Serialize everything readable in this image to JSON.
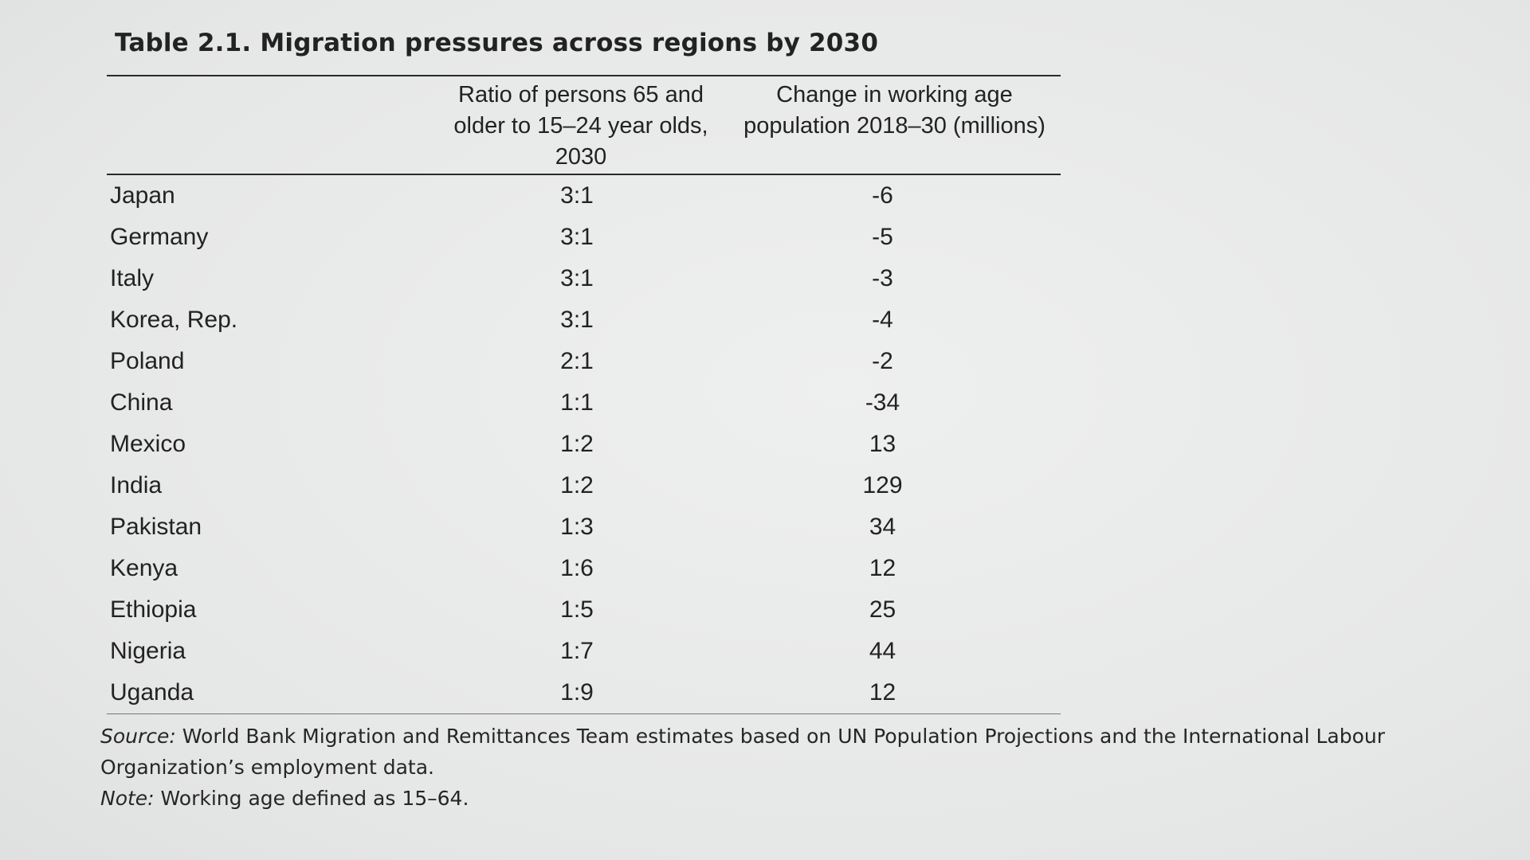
{
  "table": {
    "title": "Table 2.1. Migration pressures across regions by 2030",
    "headers": {
      "country": "",
      "ratio_line1": "Ratio of persons 65 and",
      "ratio_line2": "older to 15–24 year olds,",
      "ratio_line3": "2030",
      "change_line1": "Change in working age",
      "change_line2": "population 2018–30 (millions)"
    },
    "rows": [
      {
        "country": "Japan",
        "ratio": "3:1",
        "change": "-6"
      },
      {
        "country": "Germany",
        "ratio": "3:1",
        "change": "-5"
      },
      {
        "country": "Italy",
        "ratio": "3:1",
        "change": "-3"
      },
      {
        "country": "Korea, Rep.",
        "ratio": "3:1",
        "change": "-4"
      },
      {
        "country": "Poland",
        "ratio": "2:1",
        "change": "-2"
      },
      {
        "country": "China",
        "ratio": "1:1",
        "change": "-34"
      },
      {
        "country": "Mexico",
        "ratio": "1:2",
        "change": "13"
      },
      {
        "country": "India",
        "ratio": "1:2",
        "change": "129"
      },
      {
        "country": "Pakistan",
        "ratio": "1:3",
        "change": "34"
      },
      {
        "country": "Kenya",
        "ratio": "1:6",
        "change": "12"
      },
      {
        "country": "Ethiopia",
        "ratio": "1:5",
        "change": "25"
      },
      {
        "country": "Nigeria",
        "ratio": "1:7",
        "change": "44"
      },
      {
        "country": "Uganda",
        "ratio": "1:9",
        "change": "12"
      }
    ]
  },
  "notes": {
    "source_label": "Source:",
    "source_text": " World Bank Migration and Remittances Team estimates based on UN Population Projections and the International Labour Organization’s employment data.",
    "note_label": "Note:",
    "note_text": " Working age defined as 15–64."
  }
}
